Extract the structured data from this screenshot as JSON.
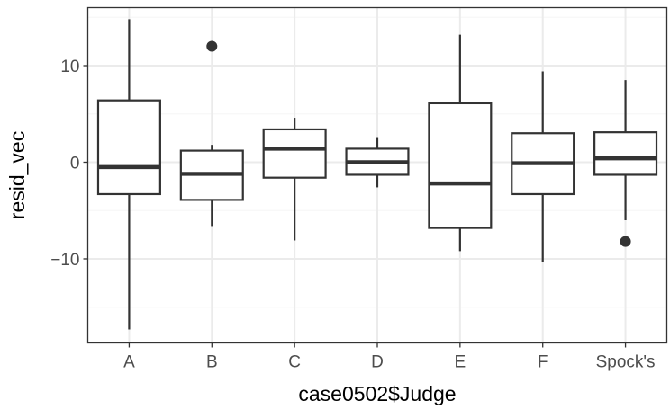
{
  "chart_data": {
    "type": "boxplot",
    "xlabel": "case0502$Judge",
    "ylabel": "resid_vec",
    "ylim": [
      -18.7,
      16
    ],
    "yticks": [
      {
        "value": 10,
        "label": "10"
      },
      {
        "value": 0,
        "label": "0"
      },
      {
        "value": -10,
        "label": "−10"
      }
    ],
    "y_minor_gridlines": [
      15,
      5,
      -5,
      -15
    ],
    "grid": true,
    "categories": [
      "A",
      "B",
      "C",
      "D",
      "E",
      "F",
      "Spock's"
    ],
    "boxes": [
      {
        "category": "A",
        "whisker_low": -17.3,
        "q1": -3.3,
        "median": -0.5,
        "q3": 6.4,
        "whisker_high": 14.8,
        "outliers": []
      },
      {
        "category": "B",
        "whisker_low": -6.6,
        "q1": -3.9,
        "median": -1.2,
        "q3": 1.2,
        "whisker_high": 1.8,
        "outliers": [
          12.0
        ]
      },
      {
        "category": "C",
        "whisker_low": -8.1,
        "q1": -1.6,
        "median": 1.4,
        "q3": 3.4,
        "whisker_high": 4.6,
        "outliers": []
      },
      {
        "category": "D",
        "whisker_low": -2.6,
        "q1": -1.3,
        "median": 0.0,
        "q3": 1.4,
        "whisker_high": 2.6,
        "outliers": []
      },
      {
        "category": "E",
        "whisker_low": -9.2,
        "q1": -6.8,
        "median": -2.2,
        "q3": 6.1,
        "whisker_high": 13.2,
        "outliers": []
      },
      {
        "category": "F",
        "whisker_low": -10.3,
        "q1": -3.3,
        "median": -0.1,
        "q3": 3.0,
        "whisker_high": 9.4,
        "outliers": []
      },
      {
        "category": "Spock's",
        "whisker_low": -6.0,
        "q1": -1.3,
        "median": 0.4,
        "q3": 3.1,
        "whisker_high": 8.5,
        "outliers": [
          -8.2
        ]
      }
    ],
    "colors": {
      "panel_border": "#333333",
      "grid_major": "#ebebeb",
      "grid_minor": "#f5f5f5",
      "box_line": "#333333",
      "outlier": "#333333",
      "tick_label": "#4d4d4d",
      "axis_title": "#000000"
    }
  }
}
